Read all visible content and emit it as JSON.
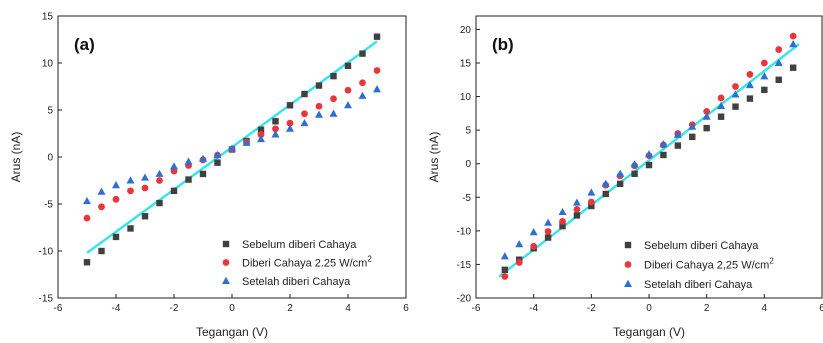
{
  "chart_data": [
    {
      "type": "scatter",
      "panel_label": "(a)",
      "xlabel": "Tegangan (V)",
      "ylabel": "Arus (nA)",
      "xlim": [
        -6,
        6
      ],
      "ylim": [
        -15,
        15
      ],
      "xticks": [
        -6,
        -4,
        -2,
        0,
        2,
        4,
        6
      ],
      "yticks": [
        -15,
        -10,
        -5,
        0,
        5,
        10,
        15
      ],
      "grid": false,
      "legend_position": "bottom-right",
      "series": [
        {
          "name": "Sebelum diberi Cahaya",
          "marker": "square",
          "color": "#404040",
          "x": [
            -5,
            -4.5,
            -4,
            -3.5,
            -3,
            -2.5,
            -2,
            -1.5,
            -1,
            -0.5,
            0,
            0.5,
            1,
            1.5,
            2,
            2.5,
            3,
            3.5,
            4,
            4.5,
            5
          ],
          "y": [
            -11.2,
            -10.0,
            -8.5,
            -7.6,
            -6.3,
            -4.9,
            -3.6,
            -2.4,
            -1.8,
            -0.6,
            0.8,
            1.7,
            2.9,
            3.8,
            5.5,
            6.7,
            7.6,
            8.6,
            9.7,
            11.0,
            12.8
          ]
        },
        {
          "name": "Diberi Cahaya 2.25 W/cm²",
          "legend_main": "Diberi Cahaya 2.25  W/cm",
          "legend_sup": "2",
          "marker": "circle",
          "color": "#e8363a",
          "x": [
            -5,
            -4.5,
            -4,
            -3.5,
            -3,
            -2.5,
            -2,
            -1.5,
            -1,
            -0.5,
            0,
            0.5,
            1,
            1.5,
            2,
            2.5,
            3,
            3.5,
            4,
            4.5,
            5
          ],
          "y": [
            -6.5,
            -5.3,
            -4.5,
            -3.6,
            -3.3,
            -2.5,
            -1.5,
            -0.9,
            -0.3,
            0.2,
            0.8,
            1.6,
            2.4,
            3.0,
            3.6,
            4.6,
            5.4,
            6.2,
            7.1,
            7.9,
            9.2
          ]
        },
        {
          "name": "Setelah diberi Cahaya",
          "marker": "triangle",
          "color": "#2e6fd4",
          "x": [
            -5,
            -4.5,
            -4,
            -3.5,
            -3,
            -2.5,
            -2,
            -1.5,
            -1,
            -0.5,
            0,
            0.5,
            1,
            1.5,
            2,
            2.5,
            3,
            3.5,
            4,
            4.5,
            5
          ],
          "y": [
            -4.7,
            -3.7,
            -3.0,
            -2.5,
            -2.2,
            -1.8,
            -1.0,
            -0.5,
            -0.2,
            0.2,
            0.9,
            1.5,
            1.9,
            2.4,
            3.0,
            3.6,
            4.5,
            4.6,
            5.5,
            6.5,
            7.2
          ]
        }
      ],
      "fit_line": {
        "color": "#33e6ee",
        "x": [
          -5,
          5
        ],
        "y": [
          -10.2,
          12.3
        ]
      }
    },
    {
      "type": "scatter",
      "panel_label": "(b)",
      "xlabel": "Tegangan (V)",
      "ylabel": "Arus (nA)",
      "xlim": [
        -6,
        6
      ],
      "ylim": [
        -20,
        22
      ],
      "xticks": [
        -6,
        -4,
        -2,
        0,
        2,
        4,
        6
      ],
      "yticks": [
        -20,
        -15,
        -10,
        -5,
        0,
        5,
        10,
        15,
        20
      ],
      "grid": false,
      "legend_position": "bottom-right",
      "series": [
        {
          "name": "Sebelum diberi Cahaya",
          "marker": "square",
          "color": "#404040",
          "x": [
            -5,
            -4.5,
            -4,
            -3.5,
            -3,
            -2.5,
            -2,
            -1.5,
            -1,
            -0.5,
            0,
            0.5,
            1,
            1.5,
            2,
            2.5,
            3,
            3.5,
            4,
            4.5,
            5
          ],
          "y": [
            -15.8,
            -14.3,
            -12.6,
            -11.0,
            -9.3,
            -7.7,
            -6.3,
            -4.5,
            -3.0,
            -1.5,
            -0.2,
            1.3,
            2.7,
            4.0,
            5.3,
            7.0,
            8.5,
            9.7,
            11.0,
            12.5,
            14.3
          ]
        },
        {
          "name": "Diberi Cahaya 2,25 W/cm²",
          "legend_main": "Diberi Cahaya 2,25    W/cm",
          "legend_sup": "2",
          "marker": "circle",
          "color": "#e8363a",
          "x": [
            -5,
            -4.5,
            -4,
            -3.5,
            -3,
            -2.5,
            -2,
            -1.5,
            -1,
            -0.5,
            0,
            0.5,
            1,
            1.5,
            2,
            2.5,
            3,
            3.5,
            4,
            4.5,
            5
          ],
          "y": [
            -16.8,
            -14.7,
            -12.3,
            -10.1,
            -8.6,
            -6.8,
            -5.7,
            -3.2,
            -1.8,
            -0.3,
            1.2,
            2.8,
            4.5,
            5.8,
            7.8,
            9.8,
            11.5,
            13.3,
            15.0,
            17.0,
            19.0
          ]
        },
        {
          "name": "Setelah diberi Cahaya",
          "marker": "triangle",
          "color": "#2e6fd4",
          "x": [
            -5,
            -4.5,
            -4,
            -3.5,
            -3,
            -2.5,
            -2,
            -1.5,
            -1,
            -0.5,
            0,
            0.5,
            1,
            1.5,
            2,
            2.5,
            3,
            3.5,
            4,
            4.5,
            5
          ],
          "y": [
            -13.8,
            -12.0,
            -10.2,
            -8.8,
            -7.2,
            -5.8,
            -4.3,
            -3.0,
            -1.5,
            -0.1,
            1.4,
            2.9,
            4.3,
            5.5,
            7.0,
            8.6,
            10.3,
            11.7,
            13.0,
            15.0,
            17.8
          ]
        }
      ],
      "fit_line": {
        "color": "#33e6ee",
        "x": [
          -5.2,
          5.2
        ],
        "y": [
          -16.8,
          17.8
        ]
      }
    }
  ]
}
